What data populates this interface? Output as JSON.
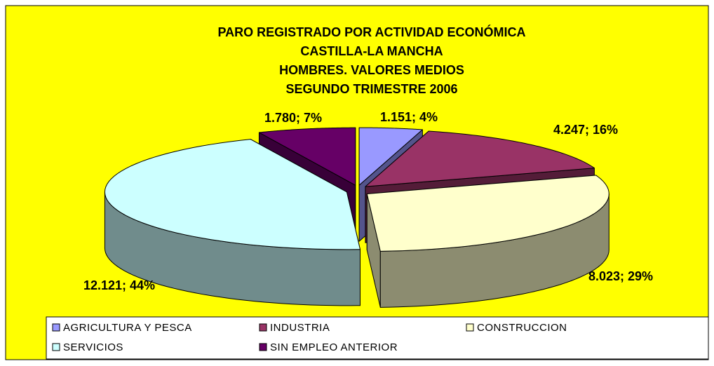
{
  "chart_data": {
    "type": "pie3d",
    "title": [
      "PARO REGISTRADO POR ACTIVIDAD ECONÓMICA",
      "CASTILLA-LA MANCHA",
      "HOMBRES.  VALORES MEDIOS",
      "SEGUNDO TRIMESTRE 2006"
    ],
    "categories": [
      "AGRICULTURA Y PESCA",
      "INDUSTRIA",
      "CONSTRUCCION",
      "SERVICIOS",
      "SIN EMPLEO ANTERIOR"
    ],
    "values": [
      1151,
      4247,
      8023,
      12121,
      1780
    ],
    "value_labels": [
      "1.151; 4%",
      "4.247; 16%",
      "8.023; 29%",
      "12.121; 44%",
      "1.780; 7%"
    ],
    "colors": [
      "#9999ff",
      "#993366",
      "#ffffcc",
      "#ccffff",
      "#660066"
    ],
    "legend": "bottom"
  }
}
